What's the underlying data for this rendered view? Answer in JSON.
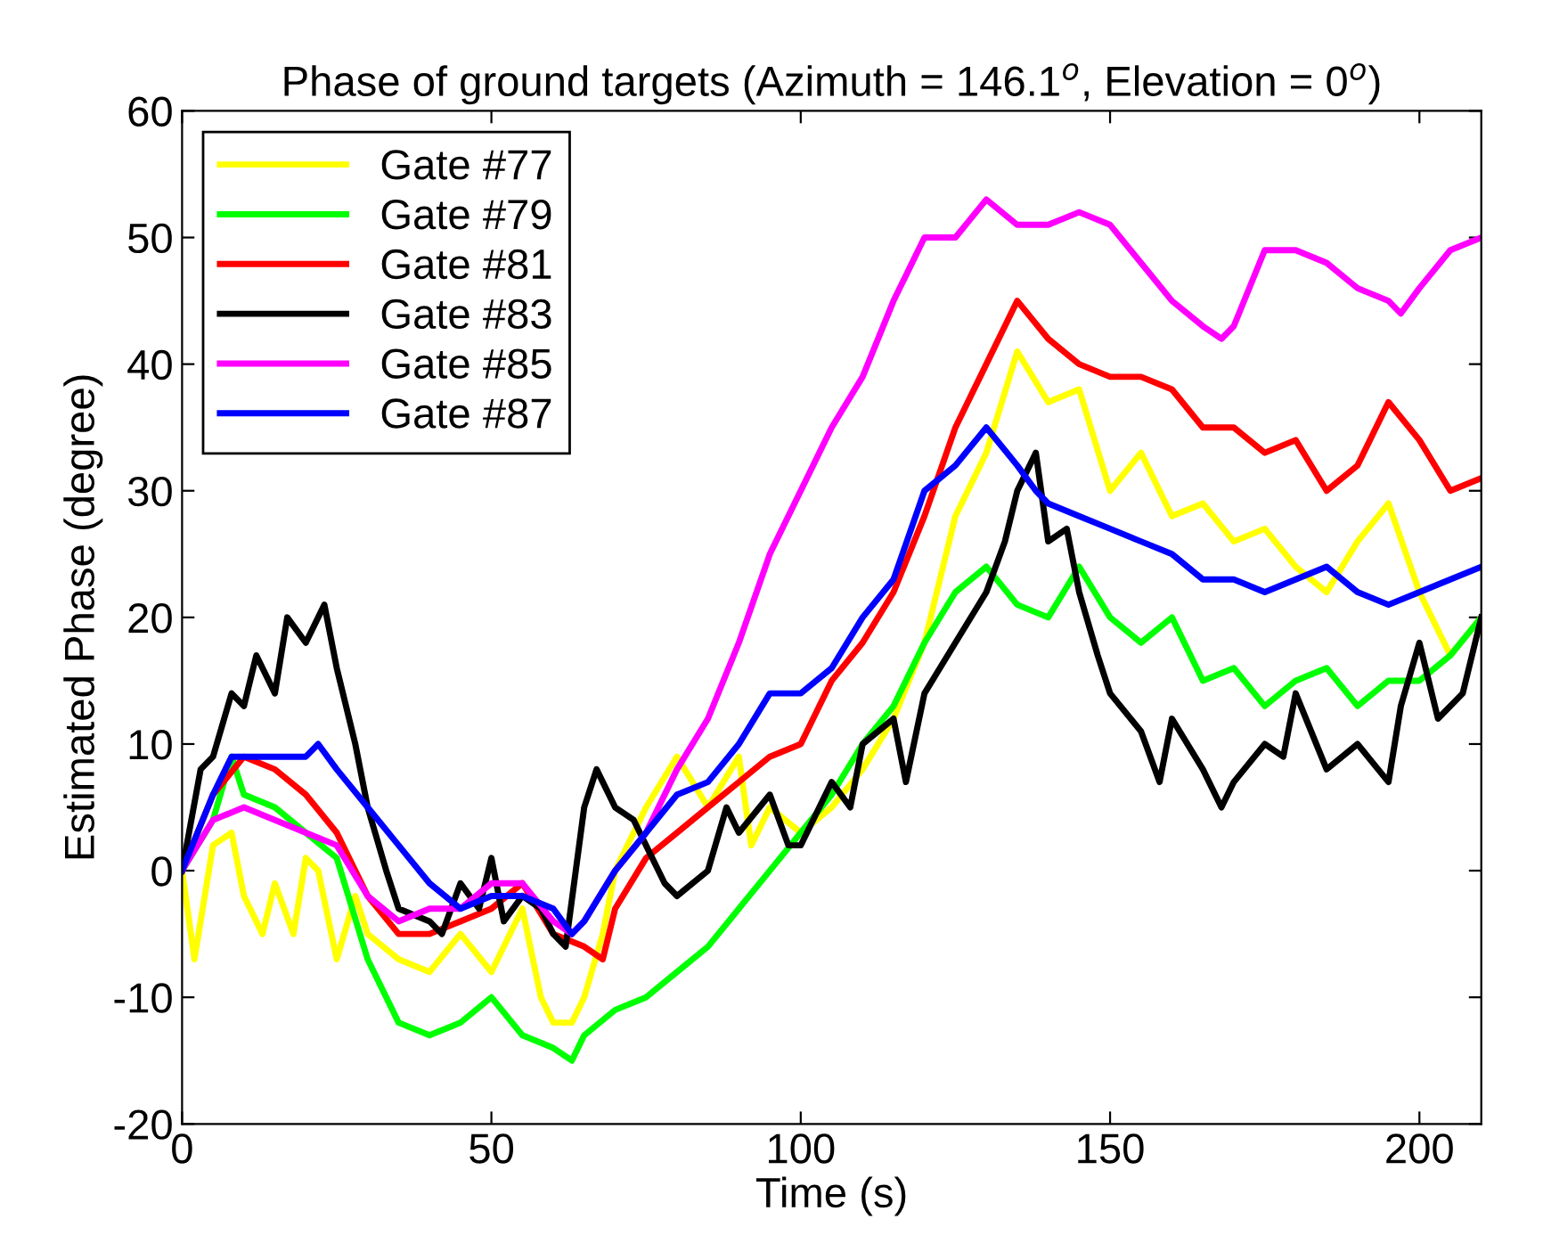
{
  "chart_data": {
    "type": "line",
    "title": "Phase of ground targets (Azimuth = 146.1$^{o}$, Elevation = 0$^{o}$)",
    "xlabel": "Time (s)",
    "ylabel": "Estimated Phase (degree)",
    "xlim": [
      0,
      210
    ],
    "xticks": [
      0,
      50,
      100,
      150,
      200
    ],
    "ylim": [
      -20,
      60
    ],
    "yticks": [
      -20,
      -10,
      0,
      10,
      20,
      30,
      40,
      50,
      60
    ],
    "grid": false,
    "legend": "top left",
    "line_style": "solid",
    "marker": "none",
    "series": [
      {
        "name": "Gate #77",
        "color": "#ffff00",
        "x": [
          0,
          2,
          5,
          8,
          10,
          13,
          15,
          18,
          20,
          22,
          25,
          28,
          30,
          35,
          40,
          45,
          50,
          55,
          58,
          60,
          63,
          65,
          68,
          70,
          75,
          80,
          85,
          90,
          92,
          95,
          100,
          105,
          110,
          115,
          120,
          125,
          130,
          135,
          140,
          145,
          150,
          155,
          160,
          165,
          170,
          175,
          180,
          185,
          190,
          195,
          200,
          205,
          210
        ],
        "values": [
          0,
          -7,
          2,
          3,
          -2,
          -5,
          -1,
          -5,
          1,
          0,
          -7,
          -2,
          -5,
          -7,
          -8,
          -5,
          -8,
          -3,
          -10,
          -12,
          -12,
          -10,
          -5,
          0,
          5,
          9,
          5,
          9,
          2,
          5,
          3,
          5,
          8,
          12,
          18,
          28,
          33,
          41,
          37,
          38,
          30,
          33,
          28,
          29,
          26,
          27,
          24,
          22,
          26,
          29,
          22,
          17,
          20
        ]
      },
      {
        "name": "Gate #79",
        "color": "#00ff00",
        "x": [
          0,
          5,
          8,
          10,
          15,
          20,
          25,
          30,
          35,
          40,
          45,
          50,
          55,
          60,
          63,
          65,
          70,
          75,
          80,
          85,
          90,
          95,
          100,
          105,
          110,
          115,
          120,
          125,
          130,
          135,
          140,
          145,
          150,
          155,
          160,
          165,
          170,
          175,
          180,
          185,
          190,
          195,
          200,
          205,
          210
        ],
        "values": [
          0,
          4,
          9,
          6,
          5,
          3,
          1,
          -7,
          -12,
          -13,
          -12,
          -10,
          -13,
          -14,
          -15,
          -13,
          -11,
          -10,
          -8,
          -6,
          -3,
          0,
          3,
          6,
          10,
          13,
          18,
          22,
          24,
          21,
          20,
          24,
          20,
          18,
          20,
          15,
          16,
          13,
          15,
          16,
          13,
          15,
          15,
          17,
          20
        ]
      },
      {
        "name": "Gate #81",
        "color": "#ff0000",
        "x": [
          0,
          5,
          10,
          15,
          20,
          25,
          30,
          35,
          40,
          45,
          50,
          55,
          60,
          65,
          68,
          70,
          75,
          80,
          85,
          90,
          95,
          100,
          105,
          110,
          115,
          120,
          125,
          130,
          135,
          140,
          145,
          150,
          155,
          160,
          165,
          170,
          175,
          180,
          185,
          190,
          195,
          200,
          205,
          210
        ],
        "values": [
          0,
          6,
          9,
          8,
          6,
          3,
          -2,
          -5,
          -5,
          -4,
          -3,
          -1,
          -5,
          -6,
          -7,
          -3,
          1,
          3,
          5,
          7,
          9,
          10,
          15,
          18,
          22,
          28,
          35,
          40,
          45,
          42,
          40,
          39,
          39,
          38,
          35,
          35,
          33,
          34,
          30,
          32,
          37,
          34,
          30,
          31
        ]
      },
      {
        "name": "Gate #83",
        "color": "#000000",
        "x": [
          0,
          3,
          5,
          8,
          10,
          12,
          15,
          17,
          20,
          23,
          25,
          28,
          30,
          33,
          35,
          40,
          42,
          45,
          48,
          50,
          52,
          55,
          58,
          60,
          62,
          65,
          67,
          70,
          73,
          75,
          78,
          80,
          85,
          88,
          90,
          95,
          98,
          100,
          105,
          108,
          110,
          115,
          117,
          120,
          125,
          130,
          133,
          135,
          138,
          140,
          143,
          145,
          148,
          150,
          155,
          158,
          160,
          165,
          168,
          170,
          175,
          178,
          180,
          185,
          190,
          195,
          197,
          200,
          203,
          207,
          210
        ],
        "values": [
          0,
          8,
          9,
          14,
          13,
          17,
          14,
          20,
          18,
          21,
          16,
          10,
          5,
          0,
          -3,
          -4,
          -5,
          -1,
          -3,
          1,
          -4,
          -2,
          -3,
          -5,
          -6,
          5,
          8,
          5,
          4,
          2,
          -1,
          -2,
          0,
          5,
          3,
          6,
          2,
          2,
          7,
          5,
          10,
          12,
          7,
          14,
          18,
          22,
          26,
          30,
          33,
          26,
          27,
          22,
          17,
          14,
          11,
          7,
          12,
          8,
          5,
          7,
          10,
          9,
          14,
          8,
          10,
          7,
          13,
          18,
          12,
          14,
          20
        ]
      },
      {
        "name": "Gate #85",
        "color": "#ff00ff",
        "x": [
          0,
          5,
          10,
          15,
          20,
          25,
          30,
          35,
          40,
          45,
          50,
          55,
          60,
          63,
          65,
          70,
          75,
          80,
          85,
          90,
          95,
          100,
          105,
          110,
          115,
          120,
          125,
          130,
          135,
          140,
          145,
          150,
          155,
          160,
          165,
          168,
          170,
          175,
          180,
          185,
          190,
          195,
          197,
          200,
          205,
          210
        ],
        "values": [
          0,
          4,
          5,
          4,
          3,
          2,
          -2,
          -4,
          -3,
          -3,
          -1,
          -1,
          -4,
          -5,
          -4,
          0,
          3,
          8,
          12,
          18,
          25,
          30,
          35,
          39,
          45,
          50,
          50,
          53,
          51,
          51,
          52,
          51,
          48,
          45,
          43,
          42,
          43,
          49,
          49,
          48,
          46,
          45,
          44,
          46,
          49,
          50
        ]
      },
      {
        "name": "Gate #87",
        "color": "#0000ff",
        "x": [
          0,
          5,
          8,
          10,
          15,
          20,
          22,
          25,
          30,
          35,
          40,
          45,
          50,
          55,
          60,
          63,
          65,
          70,
          75,
          80,
          85,
          90,
          95,
          100,
          105,
          110,
          115,
          120,
          125,
          130,
          135,
          138,
          140,
          145,
          150,
          155,
          160,
          165,
          170,
          175,
          180,
          185,
          190,
          195,
          200,
          205,
          210
        ],
        "values": [
          0,
          6,
          9,
          9,
          9,
          9,
          10,
          8,
          5,
          2,
          -1,
          -3,
          -2,
          -2,
          -3,
          -5,
          -4,
          0,
          3,
          6,
          7,
          10,
          14,
          14,
          16,
          20,
          23,
          30,
          32,
          35,
          32,
          30,
          29,
          28,
          27,
          26,
          25,
          23,
          23,
          22,
          23,
          24,
          22,
          21,
          22,
          23,
          24
        ]
      }
    ]
  }
}
